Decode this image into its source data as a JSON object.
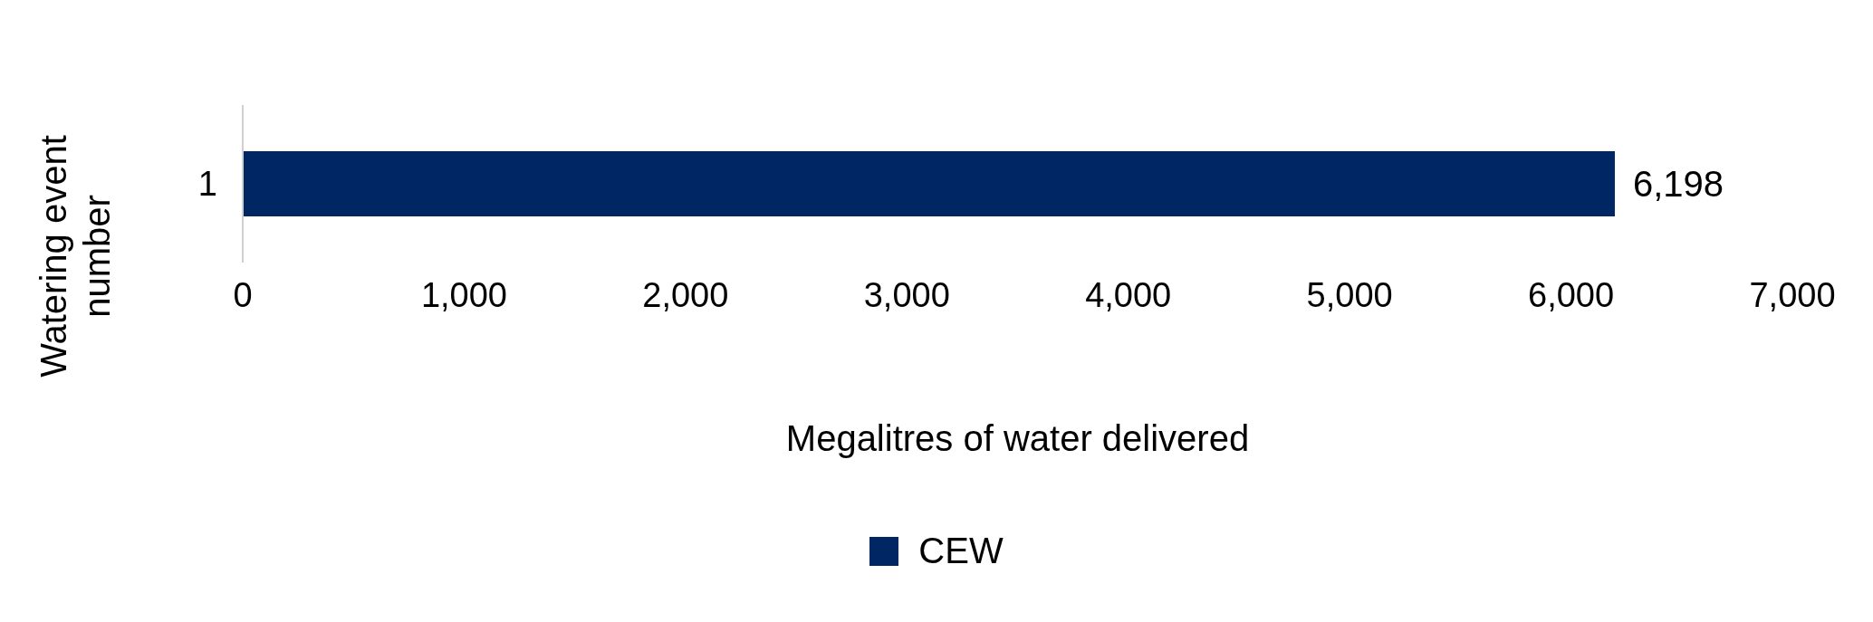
{
  "chart_data": {
    "type": "bar",
    "orientation": "horizontal",
    "xlabel": "Megalitres of water delivered",
    "ylabel": "Watering event number",
    "categories": [
      "1"
    ],
    "series": [
      {
        "name": "CEW",
        "color": "#002664",
        "values": [
          6198
        ],
        "value_labels": [
          "6,198"
        ]
      }
    ],
    "xlim": [
      0,
      7000
    ],
    "xticks": [
      0,
      {
        "value": 1000,
        "label": "1,000"
      },
      {
        "value": 2000,
        "label": "2,000"
      },
      {
        "value": 3000,
        "label": "3,000"
      },
      {
        "value": 4000,
        "label": "4,000"
      },
      {
        "value": 5000,
        "label": "5,000"
      },
      {
        "value": 6000,
        "label": "6,000"
      },
      {
        "value": 7000,
        "label": "7,000"
      }
    ],
    "grid": false,
    "legend": "bottom"
  }
}
